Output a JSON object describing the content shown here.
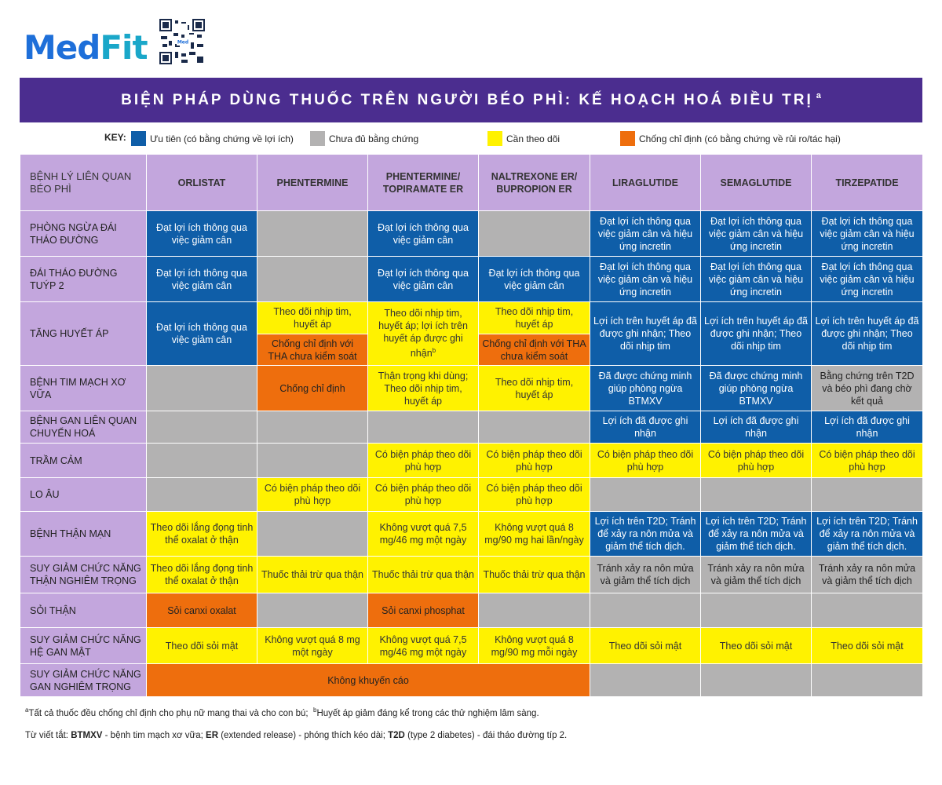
{
  "logo": {
    "med": "Med",
    "fit": "Fit"
  },
  "title": "BIỆN PHÁP DÙNG THUỐC TRÊN NGƯỜI BÉO PHÌ: KẾ HOẠCH HOÁ ĐIỀU TRỊ",
  "title_sup": "a",
  "key": {
    "label": "KEY:",
    "items": [
      {
        "label": "Ưu tiên (có bằng chứng về lợi ích)",
        "color": "#0f5ea8"
      },
      {
        "label": "Chưa đủ bằng chứng",
        "color": "#b3b2b2"
      },
      {
        "label": "Cần theo dõi",
        "color": "#fff200"
      },
      {
        "label": "Chống chỉ định (có bằng chứng về rủi ro/tác hại)",
        "color": "#ee6e0d"
      }
    ]
  },
  "colors": {
    "blue": "#0f5ea8",
    "gray": "#b3b2b2",
    "yellow": "#fff200",
    "orange": "#ee6e0d",
    "purple": "#4b2d8f",
    "lavender": "#c3a6dd"
  },
  "table": {
    "corner": "BỆNH LÝ LIÊN QUAN BÉO PHÌ",
    "columns": [
      "ORLISTAT",
      "PHENTERMINE",
      "PHENTERMINE/ TOPIRAMATE ER",
      "NALTREXONE ER/ BUPROPION ER",
      "LIRAGLUTIDE",
      "SEMAGLUTIDE",
      "TIRZEPATIDE"
    ],
    "rows": [
      {
        "label": "PHÒNG NGỪA ĐÁI THÁO ĐƯỜNG",
        "cells": [
          {
            "c": "blue",
            "t": "Đạt lợi ích thông qua việc giảm cân"
          },
          {
            "c": "gray",
            "t": ""
          },
          {
            "c": "blue",
            "t": "Đạt lợi ích thông qua việc giảm cân"
          },
          {
            "c": "gray",
            "t": ""
          },
          {
            "c": "blue",
            "t": "Đạt lợi ích thông qua việc giảm cân và hiệu ứng incretin"
          },
          {
            "c": "blue",
            "t": "Đạt lợi ích thông qua việc giảm cân và hiệu ứng incretin"
          },
          {
            "c": "blue",
            "t": "Đạt lợi ích thông qua việc giảm cân và hiệu ứng incretin"
          }
        ]
      },
      {
        "label": "ĐÁI THÁO ĐƯỜNG TUÝP 2",
        "cells": [
          {
            "c": "blue",
            "t": "Đạt lợi ích thông qua việc giảm cân"
          },
          {
            "c": "gray",
            "t": ""
          },
          {
            "c": "blue",
            "t": "Đạt lợi ích thông qua việc giảm cân"
          },
          {
            "c": "blue",
            "t": "Đạt lợi ích thông qua việc giảm cân"
          },
          {
            "c": "blue",
            "t": "Đạt lợi ích thông qua việc giảm cân và hiệu ứng incretin"
          },
          {
            "c": "blue",
            "t": "Đạt lợi ích thông qua việc giảm cân và hiệu ứng incretin"
          },
          {
            "c": "blue",
            "t": "Đạt lợi ích thông qua việc giảm cân và hiệu ứng incretin"
          }
        ]
      },
      {
        "label": "TĂNG HUYẾT ÁP",
        "orlistat": "Đạt lợi ích thông qua việc giảm cân",
        "phentermine_top": "Theo dõi nhịp tim, huyết áp",
        "phentermine_bottom": "Chống chỉ định với THA chưa kiểm soát",
        "phen_top": "Theo dõi nhịp tim, huyết áp; lợi ích trên huyết áp được ghi nhận",
        "phen_top_sup": "b",
        "naltrexone_top": "Theo dõi nhịp tim, huyết áp",
        "naltrexone_bottom": "Chống chỉ định với THA chưa kiểm soát",
        "lira": "Lợi ích trên huyết áp đã được ghi nhận; Theo dõi nhịp tim",
        "sema": "Lợi ích trên huyết áp đã được ghi nhận; Theo dõi nhịp tim",
        "tirz": "Lợi ích trên huyết áp đã được ghi nhận; Theo dõi nhịp tim"
      },
      {
        "label": "BỆNH TIM MẠCH XƠ VỮA",
        "cells": [
          {
            "c": "gray",
            "t": ""
          },
          {
            "c": "orange",
            "t": "Chống chỉ định"
          },
          {
            "c": "yellow",
            "t": "Thận trọng khi dùng; Theo dõi nhịp tim, huyết áp"
          },
          {
            "c": "yellow",
            "t": "Theo dõi nhịp tim, huyết áp"
          },
          {
            "c": "blue",
            "t": "Đã được chứng minh giúp phòng ngừa BTMXV"
          },
          {
            "c": "blue",
            "t": "Đã được chứng minh giúp phòng ngừa BTMXV"
          },
          {
            "c": "gray",
            "t": "Bằng chứng trên T2D và béo phì đang chờ kết quả"
          }
        ]
      },
      {
        "label": "BỆNH GAN LIÊN QUAN CHUYỂN HOÁ",
        "cells": [
          {
            "c": "gray",
            "t": ""
          },
          {
            "c": "gray",
            "t": ""
          },
          {
            "c": "gray",
            "t": ""
          },
          {
            "c": "gray",
            "t": ""
          },
          {
            "c": "blue",
            "t": "Lợi ích đã được ghi nhận"
          },
          {
            "c": "blue",
            "t": "Lợi ích đã được ghi nhận"
          },
          {
            "c": "blue",
            "t": "Lợi ích đã được ghi nhận"
          }
        ]
      },
      {
        "label": "TRẦM CẢM",
        "cells": [
          {
            "c": "gray",
            "t": ""
          },
          {
            "c": "gray",
            "t": ""
          },
          {
            "c": "yellow",
            "t": "Có biện pháp theo dõi phù hợp"
          },
          {
            "c": "yellow",
            "t": "Có biện pháp theo dõi phù hợp"
          },
          {
            "c": "yellow",
            "t": "Có biện pháp theo dõi phù hợp"
          },
          {
            "c": "yellow",
            "t": "Có biện pháp theo dõi phù hợp"
          },
          {
            "c": "yellow",
            "t": "Có biện pháp theo dõi phù hợp"
          }
        ]
      },
      {
        "label": "LO ÂU",
        "cells": [
          {
            "c": "gray",
            "t": ""
          },
          {
            "c": "yellow",
            "t": "Có biện pháp theo dõi phù hợp"
          },
          {
            "c": "yellow",
            "t": "Có biện pháp theo dõi phù hợp"
          },
          {
            "c": "yellow",
            "t": "Có biện pháp theo dõi phù hợp"
          },
          {
            "c": "gray",
            "t": ""
          },
          {
            "c": "gray",
            "t": ""
          },
          {
            "c": "gray",
            "t": ""
          }
        ]
      },
      {
        "label": "BỆNH THẬN MẠN",
        "cells": [
          {
            "c": "yellow",
            "t": "Theo dõi lắng đọng tinh thể oxalat ở thận"
          },
          {
            "c": "gray",
            "t": ""
          },
          {
            "c": "yellow",
            "t": "Không vượt quá 7,5 mg/46 mg một ngày"
          },
          {
            "c": "yellow",
            "t": "Không vượt quá 8 mg/90 mg hai lần/ngày"
          },
          {
            "c": "blue",
            "t": "Lợi ích trên T2D; Tránh để xảy ra nôn mửa và giảm thể tích dịch."
          },
          {
            "c": "blue",
            "t": "Lợi ích trên T2D; Tránh để xảy ra nôn mửa và giảm thể tích dịch."
          },
          {
            "c": "blue",
            "t": "Lợi ích trên T2D; Tránh để xảy ra nôn mửa và giảm thể tích dịch."
          }
        ]
      },
      {
        "label": "SUY GIẢM CHỨC NĂNG THẬN NGHIÊM TRỌNG",
        "cells": [
          {
            "c": "yellow",
            "t": "Theo dõi lắng đọng tinh thể oxalat ở thận"
          },
          {
            "c": "yellow",
            "t": "Thuốc thải trừ qua thận"
          },
          {
            "c": "yellow",
            "t": "Thuốc thải trừ qua thận"
          },
          {
            "c": "yellow",
            "t": "Thuốc thải trừ qua thận"
          },
          {
            "c": "gray",
            "t": "Tránh xảy ra nôn mửa và giảm thể tích dịch"
          },
          {
            "c": "gray",
            "t": "Tránh xảy ra nôn mửa và giảm thể tích dịch"
          },
          {
            "c": "gray",
            "t": "Tránh xảy ra nôn mửa và giảm thể tích dịch"
          }
        ]
      },
      {
        "label": "SỎI THẬN",
        "cells": [
          {
            "c": "orange",
            "t": "Sỏi canxi oxalat"
          },
          {
            "c": "gray",
            "t": ""
          },
          {
            "c": "orange",
            "t": "Sỏi canxi phosphat"
          },
          {
            "c": "gray",
            "t": ""
          },
          {
            "c": "gray",
            "t": ""
          },
          {
            "c": "gray",
            "t": ""
          },
          {
            "c": "gray",
            "t": ""
          }
        ]
      },
      {
        "label": "SUY GIẢM CHỨC NĂNG HỆ GAN MẬT",
        "cells": [
          {
            "c": "yellow",
            "t": "Theo dõi sỏi mật"
          },
          {
            "c": "yellow",
            "t": "Không vượt quá 8 mg một ngày"
          },
          {
            "c": "yellow",
            "t": "Không vượt quá 7,5 mg/46 mg một ngày"
          },
          {
            "c": "yellow",
            "t": "Không vượt quá 8 mg/90 mg mỗi ngày"
          },
          {
            "c": "yellow",
            "t": "Theo dõi sỏi mật"
          },
          {
            "c": "yellow",
            "t": "Theo dõi sỏi mật"
          },
          {
            "c": "yellow",
            "t": "Theo dõi sỏi mật"
          }
        ]
      },
      {
        "label": "SUY GIẢM CHỨC NĂNG GAN NGHIÊM TRỌNG",
        "merged": "Không khuyến cáo"
      }
    ]
  },
  "footnotes": {
    "line1_sup_a": "a",
    "line1_a": "Tất cả thuốc đều chống chỉ định cho phụ nữ mang thai và cho con bú;",
    "line1_sup_b": "b",
    "line1_b": "Huyết áp giảm đáng kể trong các thử nghiệm lâm sàng.",
    "line2_prefix": "Từ viết tắt:",
    "abbr1": "BTMXV",
    "abbr1_def": "- bệnh tim mạch xơ vữa;",
    "abbr2": "ER",
    "abbr2_def": "(extended release) - phóng thích kéo dài;",
    "abbr3": "T2D",
    "abbr3_def": "(type 2 diabetes) - đái tháo đường típ 2."
  }
}
